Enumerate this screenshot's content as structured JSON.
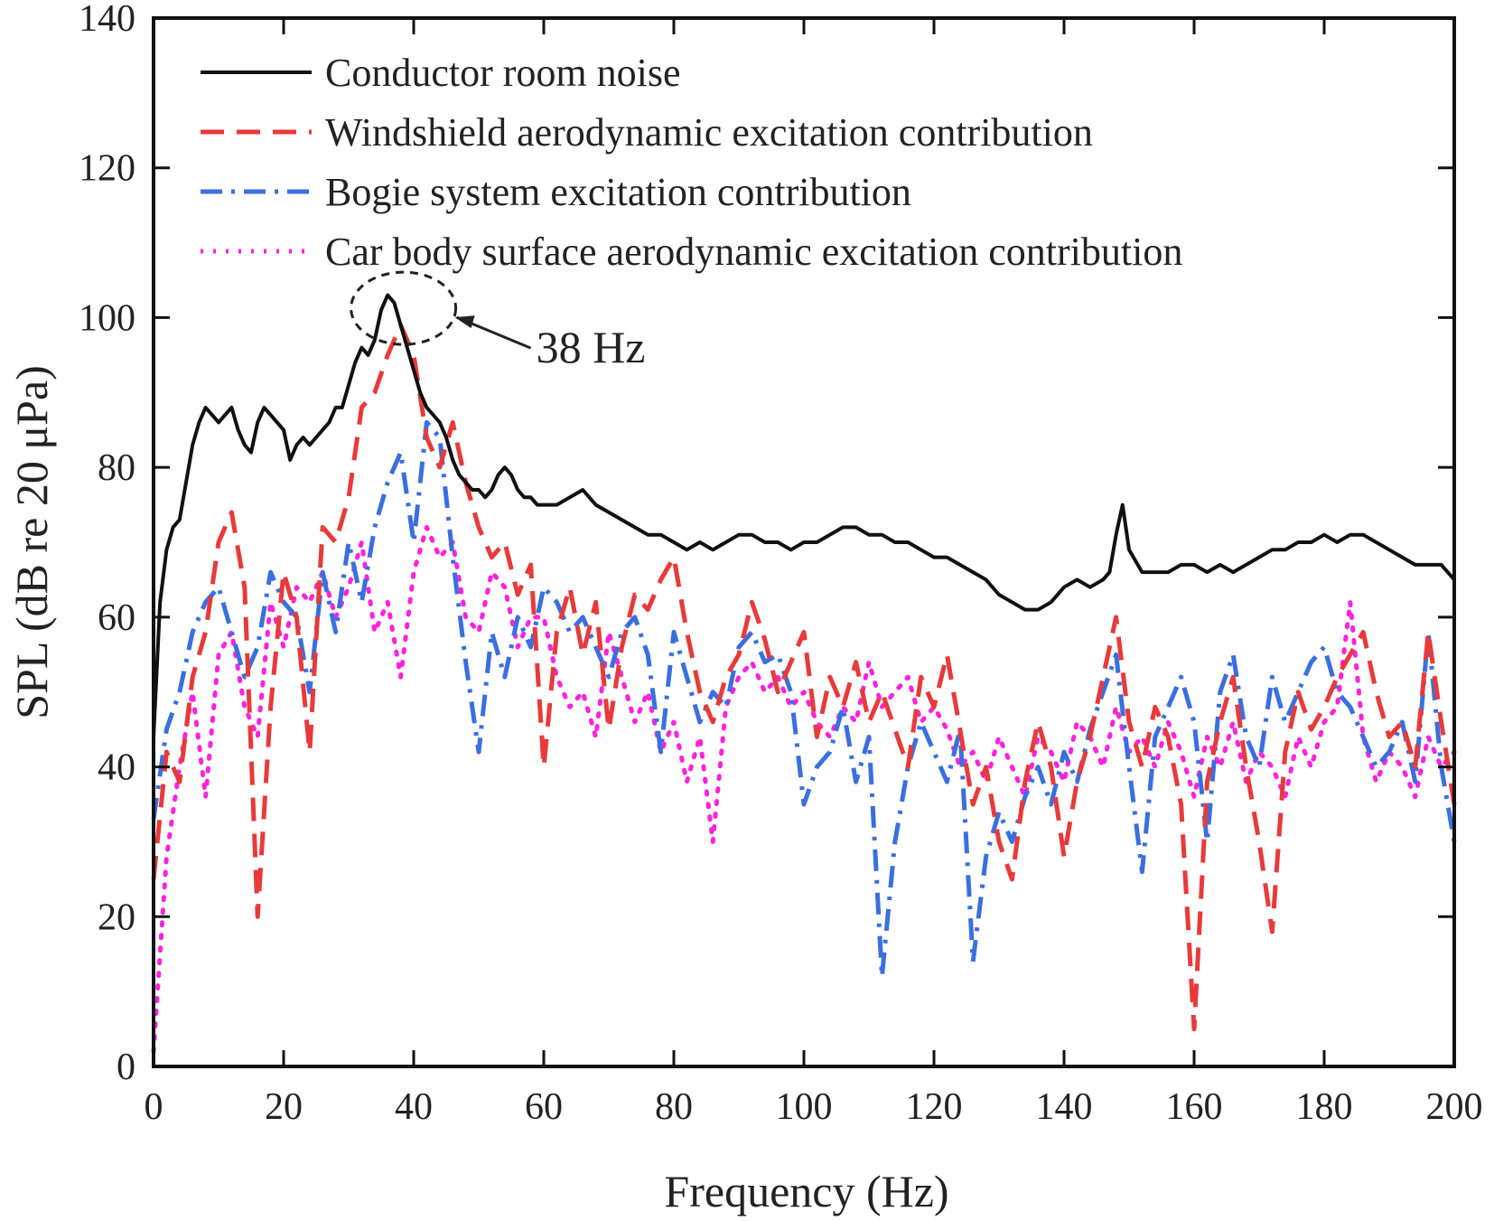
{
  "chart_data": {
    "type": "line",
    "xlabel": "Frequency (Hz)",
    "ylabel": "SPL (dB re 20 μPa)",
    "xlim": [
      0,
      200
    ],
    "ylim": [
      0,
      140
    ],
    "xticks": [
      0,
      20,
      40,
      60,
      80,
      100,
      120,
      140,
      160,
      180,
      200
    ],
    "yticks": [
      0,
      20,
      40,
      60,
      80,
      100,
      120,
      140
    ],
    "grid": false,
    "legend_position": "top-left",
    "annotation": {
      "text": "38 Hz",
      "x": 38,
      "y": 101
    },
    "series": [
      {
        "name": "Conductor room noise",
        "color": "#111111",
        "style": "solid",
        "x": [
          0,
          1,
          2,
          3,
          4,
          5,
          6,
          7,
          8,
          9,
          10,
          11,
          12,
          13,
          14,
          15,
          16,
          17,
          18,
          19,
          20,
          21,
          22,
          23,
          24,
          25,
          26,
          27,
          28,
          29,
          30,
          31,
          32,
          33,
          34,
          35,
          36,
          37,
          38,
          39,
          40,
          41,
          42,
          43,
          44,
          45,
          46,
          47,
          48,
          49,
          50,
          51,
          52,
          53,
          54,
          55,
          56,
          57,
          58,
          59,
          60,
          62,
          64,
          66,
          68,
          70,
          72,
          74,
          76,
          78,
          80,
          82,
          84,
          86,
          88,
          90,
          92,
          94,
          96,
          98,
          100,
          102,
          104,
          106,
          108,
          110,
          112,
          114,
          116,
          118,
          120,
          122,
          124,
          126,
          128,
          130,
          132,
          134,
          136,
          138,
          140,
          142,
          144,
          146,
          147,
          148,
          149,
          150,
          152,
          154,
          156,
          158,
          160,
          162,
          164,
          166,
          168,
          170,
          172,
          174,
          176,
          178,
          180,
          182,
          184,
          186,
          188,
          190,
          192,
          194,
          196,
          198,
          200
        ],
        "y": [
          44,
          62,
          69,
          72,
          73,
          78,
          83,
          86,
          88,
          87,
          86,
          87,
          88,
          85,
          83,
          82,
          86,
          88,
          87,
          86,
          85,
          81,
          83,
          84,
          83,
          84,
          85,
          86,
          88,
          88,
          91,
          94,
          96,
          95,
          97,
          101,
          103,
          102,
          99,
          96,
          93,
          90,
          88,
          87,
          86,
          84,
          81,
          79,
          78,
          77,
          77,
          76,
          77,
          79,
          80,
          79,
          77,
          76,
          76,
          75,
          75,
          75,
          76,
          77,
          75,
          74,
          73,
          72,
          71,
          71,
          70,
          69,
          70,
          69,
          70,
          71,
          71,
          70,
          70,
          69,
          70,
          70,
          71,
          72,
          72,
          71,
          71,
          70,
          70,
          69,
          68,
          68,
          67,
          66,
          65,
          63,
          62,
          61,
          61,
          62,
          64,
          65,
          64,
          65,
          66,
          71,
          75,
          69,
          66,
          66,
          66,
          67,
          67,
          66,
          67,
          66,
          67,
          68,
          69,
          69,
          70,
          70,
          71,
          70,
          71,
          71,
          70,
          69,
          68,
          67,
          67,
          67,
          65
        ]
      },
      {
        "name": "Windshield aerodynamic excitation contribution",
        "color": "#e83a3a",
        "style": "dashed",
        "x": [
          0,
          2,
          4,
          6,
          8,
          10,
          12,
          14,
          16,
          18,
          20,
          22,
          24,
          26,
          28,
          30,
          32,
          34,
          36,
          38,
          40,
          42,
          44,
          46,
          48,
          50,
          52,
          54,
          56,
          58,
          60,
          62,
          64,
          66,
          68,
          70,
          72,
          74,
          76,
          78,
          80,
          82,
          84,
          86,
          88,
          90,
          92,
          94,
          96,
          98,
          100,
          102,
          104,
          106,
          108,
          110,
          112,
          114,
          116,
          118,
          120,
          122,
          124,
          126,
          128,
          130,
          132,
          134,
          136,
          138,
          140,
          142,
          144,
          146,
          148,
          150,
          152,
          154,
          156,
          158,
          160,
          162,
          164,
          166,
          168,
          170,
          172,
          174,
          176,
          178,
          180,
          182,
          184,
          186,
          188,
          190,
          192,
          194,
          196,
          198,
          200
        ],
        "y": [
          25,
          42,
          38,
          52,
          58,
          70,
          74,
          64,
          20,
          48,
          66,
          60,
          42,
          72,
          70,
          76,
          88,
          90,
          95,
          99,
          95,
          84,
          80,
          86,
          78,
          72,
          68,
          70,
          63,
          67,
          40,
          58,
          64,
          55,
          62,
          45,
          56,
          63,
          61,
          65,
          68,
          58,
          50,
          46,
          52,
          55,
          62,
          57,
          50,
          54,
          58,
          44,
          52,
          48,
          54,
          46,
          50,
          45,
          40,
          52,
          48,
          55,
          45,
          35,
          40,
          30,
          25,
          38,
          46,
          40,
          28,
          38,
          44,
          52,
          60,
          46,
          40,
          48,
          44,
          35,
          5,
          38,
          46,
          52,
          40,
          30,
          18,
          42,
          50,
          45,
          48,
          52,
          55,
          58,
          50,
          44,
          46,
          40,
          58,
          46,
          35
        ]
      },
      {
        "name": "Bogie system excitation contribution",
        "color": "#3a6fe0",
        "style": "dash-dot",
        "x": [
          0,
          2,
          4,
          6,
          8,
          10,
          12,
          14,
          16,
          18,
          20,
          22,
          24,
          26,
          28,
          30,
          32,
          34,
          36,
          38,
          40,
          42,
          44,
          46,
          48,
          50,
          52,
          54,
          56,
          58,
          60,
          62,
          64,
          66,
          68,
          70,
          72,
          74,
          76,
          78,
          80,
          82,
          84,
          86,
          88,
          90,
          92,
          94,
          96,
          98,
          100,
          102,
          104,
          106,
          108,
          110,
          112,
          114,
          116,
          118,
          120,
          122,
          124,
          126,
          128,
          130,
          132,
          134,
          136,
          138,
          140,
          142,
          144,
          146,
          148,
          150,
          152,
          154,
          156,
          158,
          160,
          162,
          164,
          166,
          168,
          170,
          172,
          174,
          176,
          178,
          180,
          182,
          184,
          186,
          188,
          190,
          192,
          194,
          196,
          198,
          200
        ],
        "y": [
          33,
          45,
          50,
          58,
          62,
          64,
          58,
          52,
          56,
          66,
          62,
          60,
          50,
          66,
          58,
          70,
          62,
          72,
          78,
          82,
          70,
          86,
          84,
          68,
          54,
          42,
          58,
          52,
          60,
          56,
          64,
          62,
          58,
          60,
          56,
          52,
          58,
          60,
          55,
          42,
          58,
          52,
          46,
          50,
          48,
          56,
          58,
          54,
          55,
          50,
          35,
          40,
          42,
          48,
          38,
          44,
          12,
          30,
          40,
          46,
          42,
          38,
          45,
          14,
          28,
          34,
          30,
          36,
          40,
          35,
          42,
          38,
          45,
          50,
          55,
          40,
          26,
          44,
          48,
          52,
          46,
          30,
          50,
          55,
          44,
          40,
          52,
          46,
          50,
          54,
          56,
          50,
          48,
          44,
          40,
          42,
          46,
          38,
          58,
          40,
          30
        ]
      },
      {
        "name": "Car body surface aerodynamic excitation contribution",
        "color": "#ff22dd",
        "style": "dotted",
        "x": [
          0,
          2,
          4,
          6,
          8,
          10,
          12,
          14,
          16,
          18,
          20,
          22,
          24,
          26,
          28,
          30,
          32,
          34,
          36,
          38,
          40,
          42,
          44,
          46,
          48,
          50,
          52,
          54,
          56,
          58,
          60,
          62,
          64,
          66,
          68,
          70,
          72,
          74,
          76,
          78,
          80,
          82,
          84,
          86,
          88,
          90,
          92,
          94,
          96,
          98,
          100,
          102,
          104,
          106,
          108,
          110,
          112,
          114,
          116,
          118,
          120,
          122,
          124,
          126,
          128,
          130,
          132,
          134,
          136,
          138,
          140,
          142,
          144,
          146,
          148,
          150,
          152,
          154,
          156,
          158,
          160,
          162,
          164,
          166,
          168,
          170,
          172,
          174,
          176,
          178,
          180,
          182,
          184,
          186,
          188,
          190,
          192,
          194,
          196,
          198,
          200
        ],
        "y": [
          2,
          28,
          40,
          50,
          36,
          55,
          58,
          48,
          44,
          62,
          56,
          64,
          62,
          66,
          60,
          64,
          70,
          58,
          62,
          52,
          66,
          72,
          68,
          70,
          60,
          58,
          66,
          64,
          56,
          60,
          60,
          52,
          48,
          50,
          44,
          58,
          52,
          46,
          50,
          42,
          46,
          38,
          44,
          30,
          48,
          52,
          54,
          50,
          52,
          48,
          50,
          46,
          44,
          48,
          46,
          54,
          48,
          50,
          52,
          46,
          48,
          45,
          40,
          42,
          38,
          44,
          40,
          36,
          44,
          42,
          38,
          46,
          44,
          40,
          48,
          42,
          44,
          40,
          46,
          42,
          36,
          44,
          40,
          46,
          38,
          42,
          40,
          36,
          44,
          40,
          46,
          48,
          62,
          44,
          38,
          42,
          40,
          36,
          44,
          40,
          42
        ]
      }
    ]
  }
}
